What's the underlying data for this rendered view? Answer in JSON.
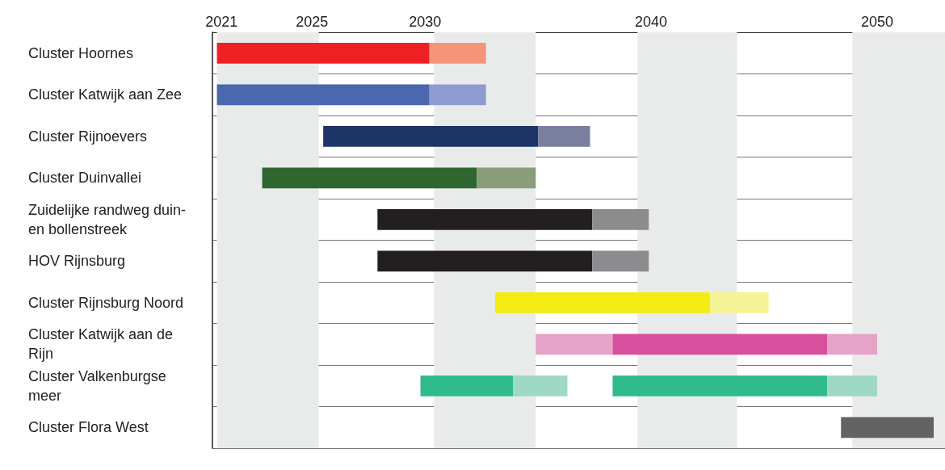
{
  "chart_data": {
    "type": "bar",
    "orientation": "horizontal",
    "categories": [
      "Cluster Hoornes",
      "Cluster Katwijk aan Zee",
      "Cluster Rijnoevers",
      "Cluster Duinvallei",
      "Zuidelijke randweg duin- en bollenstreek",
      "HOV Rijnsburg",
      "Cluster Rijnsburg Noord",
      "Cluster Katwijk aan de Rijn",
      "Cluster Valkenburgse meer",
      "Cluster Flora West"
    ],
    "xlim": [
      2020.6,
      2053.0
    ],
    "xticks": [
      2021,
      2025,
      2030,
      2040,
      2050
    ],
    "grid": "y",
    "bands": [
      {
        "axis": "x",
        "from": 2020.8,
        "to": 2025.3,
        "color": "#e9ebea"
      },
      {
        "axis": "x",
        "from": 2030.4,
        "to": 2034.9,
        "color": "#e9ebea"
      },
      {
        "axis": "x",
        "from": 2039.4,
        "to": 2043.8,
        "color": "#e9ebea"
      },
      {
        "axis": "x",
        "from": 2048.9,
        "to": 2053.0,
        "color": "#e9ebea"
      }
    ],
    "series": [
      {
        "base": [
          null,
          null,
          null,
          null,
          null,
          null,
          null,
          2034.9,
          null,
          null
        ],
        "values": [
          null,
          null,
          null,
          null,
          null,
          null,
          null,
          3.4,
          null,
          null
        ],
        "colors": [
          null,
          null,
          null,
          null,
          null,
          null,
          null,
          "#e5a3c8",
          null,
          null
        ]
      },
      {
        "base": [
          2020.8,
          2020.8,
          2025.5,
          2022.8,
          2027.9,
          2027.9,
          2033.1,
          2038.3,
          2029.8,
          2048.4
        ],
        "values": [
          9.4,
          9.4,
          9.5,
          9.5,
          9.5,
          9.5,
          9.5,
          9.5,
          4.1,
          4.1
        ],
        "colors": [
          "#ee2024",
          "#4a67b0",
          "#1c3566",
          "#2f6630",
          "#231f20",
          "#231f20",
          "#f2eb14",
          "#d6509d",
          "#32ba8f",
          "#636363"
        ]
      },
      {
        "base": [
          2030.2,
          2030.2,
          2035.0,
          2032.3,
          2037.4,
          2037.4,
          2042.6,
          2047.8,
          2033.9,
          null
        ],
        "values": [
          2.5,
          2.5,
          2.3,
          2.6,
          2.5,
          2.5,
          2.6,
          2.2,
          2.4,
          null
        ],
        "colors": [
          "#f4957a",
          "#8f9bd0",
          "#7b7f9f",
          "#8a9e7b",
          "#8c8c8e",
          "#8c8c8e",
          "#f6f296",
          "#e5a3c8",
          "#9fd8c3",
          null
        ]
      },
      {
        "base": [
          null,
          null,
          null,
          null,
          null,
          null,
          null,
          null,
          2038.3,
          null
        ],
        "values": [
          null,
          null,
          null,
          null,
          null,
          null,
          null,
          null,
          9.5,
          null
        ],
        "colors": [
          null,
          null,
          null,
          null,
          null,
          null,
          null,
          null,
          "#32ba8f",
          null
        ]
      },
      {
        "base": [
          null,
          null,
          null,
          null,
          null,
          null,
          null,
          null,
          2047.8,
          null
        ],
        "values": [
          null,
          null,
          null,
          null,
          null,
          null,
          null,
          null,
          2.2,
          null
        ],
        "colors": [
          null,
          null,
          null,
          null,
          null,
          null,
          null,
          null,
          "#9fd8c3",
          null
        ]
      }
    ]
  }
}
